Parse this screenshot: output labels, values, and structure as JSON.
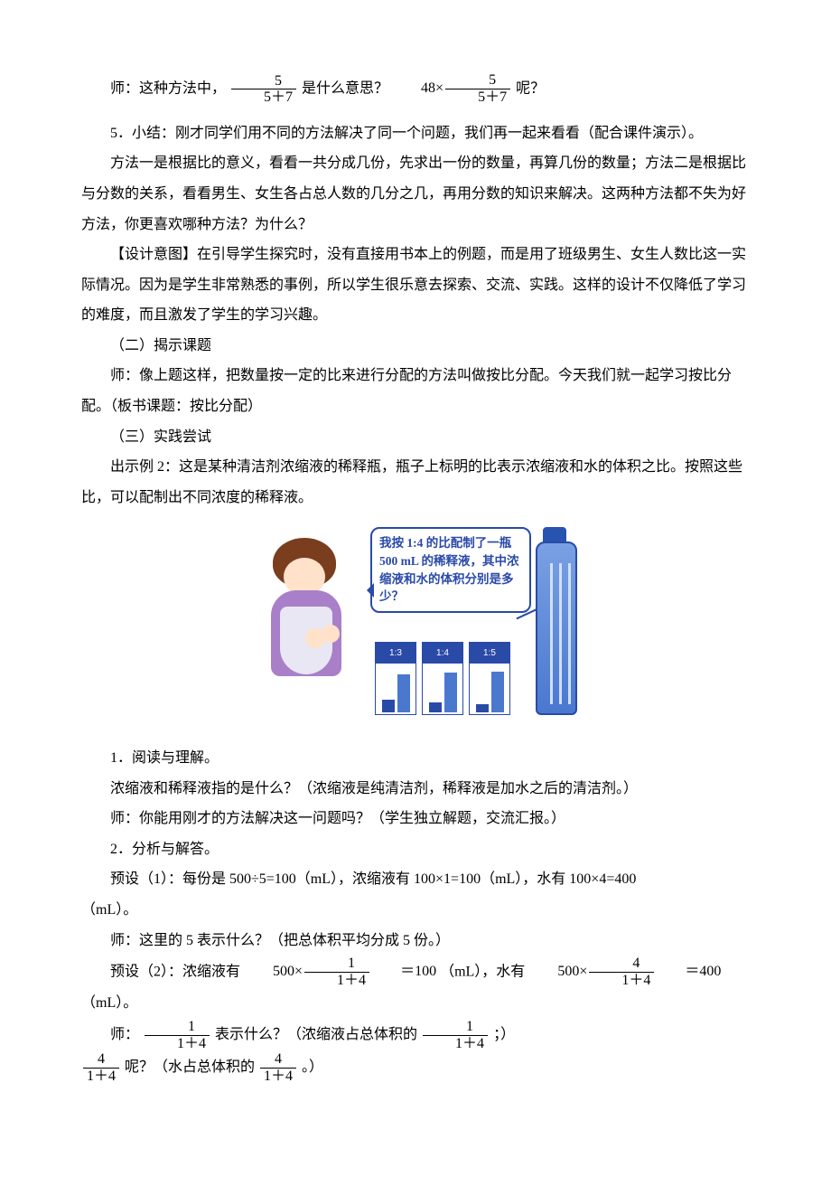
{
  "l1_a": "师：这种方法中，",
  "f1_num": "5",
  "f1_den": "5＋7",
  "l1_b": " 是什么意思？",
  "f2_pre": "48×",
  "f2_num": "5",
  "f2_den": "5＋7",
  "l1_c": " 呢？",
  "p5": "5．小结：刚才同学们用不同的方法解决了同一个问题，我们再一起来看看（配合课件演示）。",
  "p6": "方法一是根据比的意义，看看一共分成几份，先求出一份的数量，再算几份的数量；方法二是根据比与分数的关系，看看男生、女生各占总人数的几分之几，再用分数的知识来解决。这两种方法都不失为好方法，你更喜欢哪种方法？为什么？",
  "p7": "【设计意图】在引导学生探究时，没有直接用书本上的例题，而是用了班级男生、女生人数比这一实际情况。因为是学生非常熟悉的事例，所以学生很乐意去探索、交流、实践。这样的设计不仅降低了学习的难度，而且激发了学生的学习兴趣。",
  "h2": "（二）揭示课题",
  "p8": "师：像上题这样，把数量按一定的比来进行分配的方法叫做按比分配。今天我们就一起学习按比分配。（板书课题：按比分配）",
  "h3": "（三）实践尝试",
  "p9": "出示例 2：这是某种清洁剂浓缩液的稀释瓶，瓶子上标明的比表示浓缩液和水的体积之比。按照这些比，可以配制出不同浓度的稀释液。",
  "bubble_text": "我按 1:4 的比配制了一瓶 500 mL 的稀释液，其中浓缩液和水的体积分别是多少？",
  "ratio_labels": [
    "1:3",
    "1:4",
    "1:5"
  ],
  "s1": "1．阅读与理解。",
  "p10": "浓缩液和稀释液指的是什么？（浓缩液是纯清洁剂，稀释液是加水之后的清洁剂。）",
  "p11": "师：你能用刚才的方法解决这一问题吗？（学生独立解题，交流汇报。）",
  "s2": "2．分析与解答。",
  "p12a": "预设（1）：每份是 500÷5=100（mL），浓缩液有 100×1=100（mL），水有 100×4=400",
  "p12b": "（mL）。",
  "p13": "师：这里的 5 表示什么？（把总体积平均分成 5 份。）",
  "p14a": "预设（2）：浓缩液有 ",
  "m14a_pre": "500×",
  "m14a_num": "1",
  "m14a_den": "1＋4",
  "m14a_eq": "＝100",
  "p14b": "（mL），水有 ",
  "m14b_pre": "500×",
  "m14b_num": "4",
  "m14b_den": "1＋4",
  "m14b_eq": "＝400",
  "p14c": "（mL）。",
  "p15a": "师：",
  "m15a_num": "1",
  "m15a_den": "1＋4",
  "p15b": " 表示什么？（浓缩液占总体积的 ",
  "m15b_num": "1",
  "m15b_den": "1＋4",
  "p15c": "；）",
  "m16a_num": "4",
  "m16a_den": "1＋4",
  "p16a": " 呢？（水占总体积的 ",
  "m16b_num": "4",
  "m16b_den": "1＋4",
  "p16b": "。）",
  "ratio_bars": [
    {
      "a": 14,
      "b": 42
    },
    {
      "a": 11,
      "b": 44
    },
    {
      "a": 9,
      "b": 45
    }
  ]
}
